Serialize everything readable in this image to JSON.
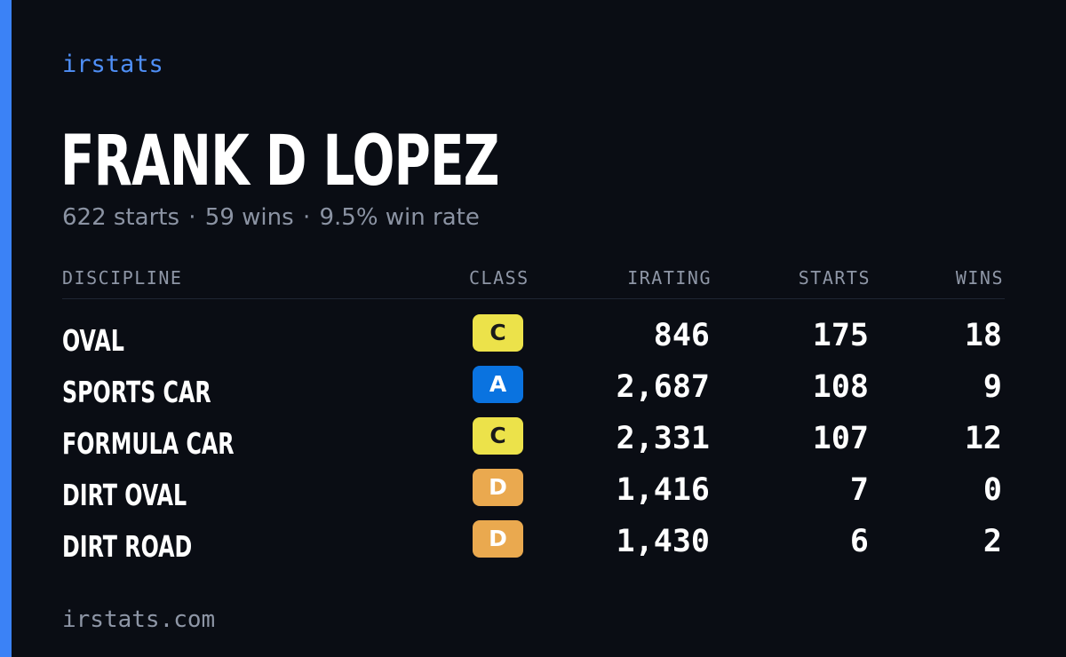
{
  "brand": "irstats",
  "driver": {
    "name": "FRANK D LOPEZ",
    "starts_text": "622 starts",
    "wins_text": "59 wins",
    "win_rate_text": "9.5% win rate",
    "separator": "·"
  },
  "table": {
    "headers": {
      "discipline": "DISCIPLINE",
      "class": "CLASS",
      "irating": "IRATING",
      "starts": "STARTS",
      "wins": "WINS"
    },
    "rows": [
      {
        "discipline": "OVAL",
        "class": "C",
        "irating": "846",
        "starts": "175",
        "wins": "18"
      },
      {
        "discipline": "SPORTS CAR",
        "class": "A",
        "irating": "2,687",
        "starts": "108",
        "wins": "9"
      },
      {
        "discipline": "FORMULA CAR",
        "class": "C",
        "irating": "2,331",
        "starts": "107",
        "wins": "12"
      },
      {
        "discipline": "DIRT OVAL",
        "class": "D",
        "irating": "1,416",
        "starts": "7",
        "wins": "0"
      },
      {
        "discipline": "DIRT ROAD",
        "class": "D",
        "irating": "1,430",
        "starts": "6",
        "wins": "2"
      }
    ]
  },
  "class_colors": {
    "A": {
      "bg": "#0a73e0",
      "fg": "#ffffff"
    },
    "C": {
      "bg": "#ece24a",
      "fg": "#1a1a1a"
    },
    "D": {
      "bg": "#eaa94f",
      "fg": "#ffffff"
    }
  },
  "colors": {
    "background": "#0a0d14",
    "accent": "#3b82f6"
  },
  "footer": "irstats.com"
}
